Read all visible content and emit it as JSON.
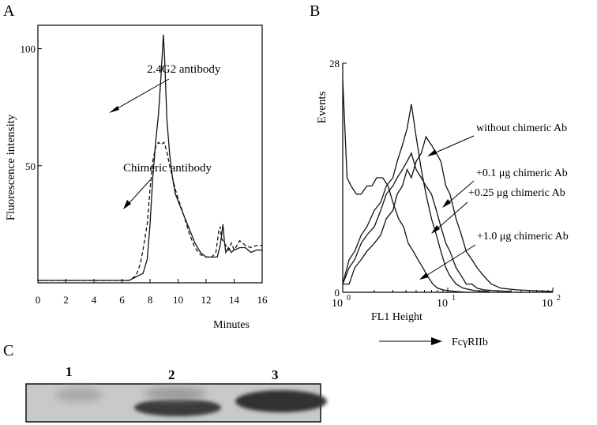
{
  "chart_data": [
    {
      "panel_label": "A",
      "type": "line",
      "xlabel": "Minutes",
      "ylabel": "Fluorescence intensity",
      "xlim": [
        0,
        16
      ],
      "ylim": [
        0,
        110
      ],
      "x_ticks": [
        "0",
        "2",
        "4",
        "6",
        "8",
        "10",
        "12",
        "14",
        "16"
      ],
      "y_ticks": [
        "50",
        "100"
      ],
      "line_styles": [
        "solid",
        "dashed"
      ],
      "series": [
        {
          "x": [
            0,
            6.5,
            7.5,
            7.8,
            8.0,
            8.2,
            8.4,
            8.6,
            8.8,
            8.95,
            9.05,
            9.2,
            9.4,
            9.6,
            9.8,
            10.0,
            10.4,
            10.8,
            11.2,
            11.6,
            12.0,
            12.4,
            12.8,
            13.0,
            13.1,
            13.2,
            13.3,
            13.4,
            13.6,
            13.8,
            14.0,
            14.4,
            14.8,
            15.2,
            15.6,
            16.0
          ],
          "y": [
            1,
            1,
            4,
            10,
            25,
            45,
            60,
            72,
            90,
            106,
            95,
            70,
            55,
            45,
            38,
            35,
            29,
            23,
            17,
            13,
            11,
            11,
            11,
            16,
            20,
            25,
            18,
            13,
            15,
            13,
            14,
            15,
            15,
            13,
            14,
            14
          ]
        },
        {
          "x": [
            0,
            6.5,
            7.0,
            7.3,
            7.5,
            7.8,
            8.0,
            8.2,
            8.4,
            8.6,
            8.8,
            9.0,
            9.2,
            9.4,
            9.6,
            9.8,
            10.0,
            10.4,
            10.8,
            11.2,
            11.6,
            12.0,
            12.4,
            12.7,
            12.9,
            13.0,
            13.1,
            13.3,
            13.6,
            13.8,
            14.0,
            14.4,
            14.8,
            15.2,
            15.6,
            16.0
          ],
          "y": [
            1,
            1,
            3,
            8,
            14,
            25,
            40,
            52,
            58,
            60,
            59,
            60,
            56,
            50,
            45,
            40,
            36,
            29,
            21,
            15,
            12,
            11,
            11,
            13,
            22,
            24,
            19,
            17,
            14,
            17,
            14,
            18,
            16,
            15,
            16,
            16
          ]
        }
      ],
      "annotations": [
        "2.4G2 antibody",
        "Chimeric antibody"
      ]
    },
    {
      "panel_label": "B",
      "type": "line",
      "xlabel": "FL1 Height",
      "ylabel": "Events",
      "xscale": "log",
      "xlim": [
        1,
        100
      ],
      "ylim": [
        0,
        28
      ],
      "x_ticks": [
        {
          "base": "10",
          "exp": "0"
        },
        {
          "base": "10",
          "exp": "1"
        },
        {
          "base": "10",
          "exp": "2"
        }
      ],
      "y_ticks": [
        "0",
        "28"
      ],
      "series": [
        {
          "x": [
            1.0,
            1.15,
            1.3,
            1.5,
            1.7,
            2.0,
            2.3,
            2.6,
            3.0,
            3.3,
            3.7,
            4.1,
            4.5,
            5.0,
            5.6,
            6.2,
            7.0,
            7.8,
            8.6,
            9.6,
            10.5,
            12,
            13.5,
            15,
            17,
            19,
            22,
            26,
            32,
            45,
            65,
            100
          ],
          "y": [
            1,
            1,
            3,
            4,
            5,
            6,
            7,
            9,
            10,
            12,
            13,
            15,
            14,
            16,
            17,
            19,
            18,
            17,
            16,
            13,
            12,
            9,
            7,
            5,
            4,
            3,
            2,
            1,
            0.5,
            0.3,
            0.2,
            0.1
          ]
        },
        {
          "x": [
            1.0,
            1.15,
            1.3,
            1.5,
            1.7,
            2.0,
            2.3,
            2.6,
            3.0,
            3.3,
            3.7,
            4.1,
            4.5,
            5.0,
            5.6,
            6.2,
            7.0,
            7.8,
            8.6,
            9.6,
            10.5,
            12,
            13.5,
            15,
            17,
            19,
            22,
            28,
            40
          ],
          "y": [
            1,
            3,
            4,
            6,
            7,
            8,
            10,
            12,
            13,
            14,
            15,
            16,
            17,
            15,
            14,
            13,
            12,
            10,
            8,
            6,
            5,
            3,
            2,
            1,
            1,
            0.5,
            0.3,
            0.2,
            0.1
          ]
        },
        {
          "x": [
            1.0,
            1.15,
            1.3,
            1.5,
            1.7,
            2.0,
            2.3,
            2.6,
            3.0,
            3.3,
            3.7,
            4.1,
            4.5,
            5.0,
            5.6,
            6.2,
            7.0,
            7.8,
            8.6,
            9.6,
            10.5,
            12,
            14,
            18,
            25
          ],
          "y": [
            1,
            4,
            5,
            7,
            8,
            10,
            11,
            13,
            14,
            16,
            18,
            20,
            23,
            19,
            15,
            12,
            9,
            7,
            5,
            3,
            2,
            1,
            0.5,
            0.2,
            0.1
          ]
        },
        {
          "x": [
            1.0,
            1.1,
            1.2,
            1.35,
            1.5,
            1.7,
            1.9,
            2.1,
            2.4,
            2.7,
            3.0,
            3.4,
            3.8,
            4.2,
            4.7,
            5.2,
            5.8,
            6.4,
            7.2,
            8.0,
            9.0,
            10.0,
            12,
            15
          ],
          "y": [
            26,
            14,
            13,
            12,
            12,
            13,
            13,
            14,
            14,
            13,
            11,
            9,
            8,
            6,
            5,
            4,
            3,
            2,
            1,
            0.5,
            0.3,
            0.2,
            0.1,
            0
          ]
        }
      ],
      "annotations": [
        "without chimeric Ab",
        "+0.1 μg chimeric Ab",
        "+0.25 μg chimeric Ab",
        "+1.0 μg chimeric Ab"
      ],
      "below_axis_label": "FcγRIIb"
    },
    {
      "panel_label": "C",
      "type": "image",
      "lane_labels": [
        "1",
        "2",
        "3"
      ]
    }
  ]
}
